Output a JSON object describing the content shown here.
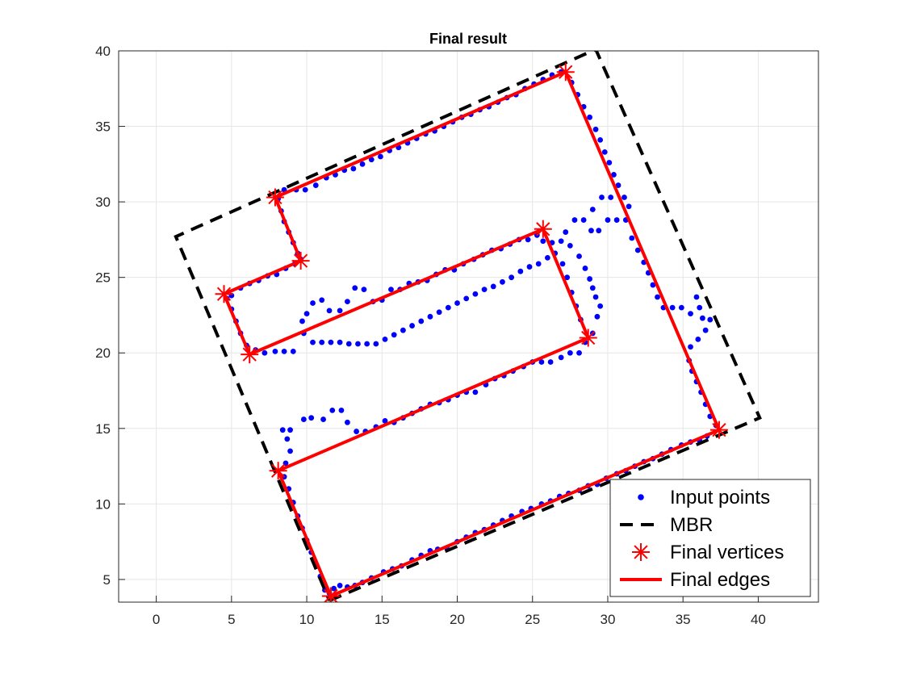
{
  "chart_data": {
    "type": "scatter",
    "title": "Final result",
    "xlabel": "",
    "ylabel": "",
    "xlim": [
      -2.5,
      44
    ],
    "ylim": [
      3.5,
      40
    ],
    "xticks": [
      0,
      5,
      10,
      15,
      20,
      25,
      30,
      35,
      40
    ],
    "yticks": [
      5,
      10,
      15,
      20,
      25,
      30,
      35,
      40
    ],
    "grid": true,
    "legend_position": "bottom-right",
    "colors": {
      "points": "#0000ff",
      "mbr": "#000000",
      "vertices": "#ff0000",
      "edges": "#ff0000",
      "grid": "#e6e6e6"
    },
    "series": [
      {
        "name": "Input points",
        "kind": "points",
        "points": [
          [
            11.5,
            4.1
          ],
          [
            11.8,
            4.4
          ],
          [
            12.2,
            4.6
          ],
          [
            12.7,
            4.5
          ],
          [
            13.2,
            4.6
          ],
          [
            13.7,
            4.8
          ],
          [
            14.3,
            5.1
          ],
          [
            15.1,
            5.5
          ],
          [
            15.7,
            5.7
          ],
          [
            16.3,
            5.9
          ],
          [
            17.0,
            6.3
          ],
          [
            17.6,
            6.6
          ],
          [
            18.2,
            6.9
          ],
          [
            18.7,
            7.0
          ],
          [
            19.3,
            7.1
          ],
          [
            20.0,
            7.5
          ],
          [
            20.6,
            7.8
          ],
          [
            21.2,
            8.1
          ],
          [
            21.8,
            8.3
          ],
          [
            22.4,
            8.6
          ],
          [
            23.0,
            8.9
          ],
          [
            23.6,
            9.2
          ],
          [
            24.3,
            9.5
          ],
          [
            24.9,
            9.7
          ],
          [
            25.6,
            10.0
          ],
          [
            26.2,
            10.2
          ],
          [
            26.8,
            10.5
          ],
          [
            27.4,
            10.7
          ],
          [
            28.1,
            10.9
          ],
          [
            28.7,
            11.2
          ],
          [
            29.3,
            11.3
          ],
          [
            29.9,
            11.7
          ],
          [
            30.6,
            12.0
          ],
          [
            31.2,
            12.2
          ],
          [
            31.8,
            12.5
          ],
          [
            32.4,
            12.8
          ],
          [
            33.0,
            13.0
          ],
          [
            33.6,
            13.3
          ],
          [
            34.2,
            13.6
          ],
          [
            34.9,
            13.9
          ],
          [
            35.5,
            14.1
          ],
          [
            36.1,
            14.2
          ],
          [
            36.6,
            14.5
          ],
          [
            11.2,
            4.3
          ],
          [
            10.9,
            5.2
          ],
          [
            10.6,
            6.0
          ],
          [
            10.3,
            6.8
          ],
          [
            10.0,
            7.6
          ],
          [
            9.7,
            8.4
          ],
          [
            9.4,
            9.2
          ],
          [
            9.1,
            10.1
          ],
          [
            8.8,
            11.0
          ],
          [
            8.5,
            11.8
          ],
          [
            8.6,
            12.7
          ],
          [
            8.9,
            13.5
          ],
          [
            8.7,
            14.3
          ],
          [
            8.4,
            14.9
          ],
          [
            8.9,
            14.9
          ],
          [
            9.8,
            15.6
          ],
          [
            10.3,
            15.7
          ],
          [
            11.1,
            15.6
          ],
          [
            11.7,
            16.2
          ],
          [
            12.3,
            16.2
          ],
          [
            12.7,
            15.4
          ],
          [
            13.3,
            14.8
          ],
          [
            13.9,
            14.8
          ],
          [
            14.6,
            15.1
          ],
          [
            15.2,
            15.5
          ],
          [
            15.8,
            15.4
          ],
          [
            16.4,
            15.7
          ],
          [
            17.0,
            16.0
          ],
          [
            17.6,
            16.3
          ],
          [
            18.2,
            16.6
          ],
          [
            18.8,
            16.7
          ],
          [
            19.4,
            16.9
          ],
          [
            20.0,
            17.2
          ],
          [
            20.6,
            17.4
          ],
          [
            21.2,
            17.4
          ],
          [
            21.9,
            17.9
          ],
          [
            22.5,
            18.3
          ],
          [
            23.1,
            18.5
          ],
          [
            23.7,
            18.8
          ],
          [
            24.4,
            19.1
          ],
          [
            25.0,
            19.4
          ],
          [
            25.6,
            19.4
          ],
          [
            26.2,
            19.4
          ],
          [
            26.9,
            19.7
          ],
          [
            27.5,
            20.0
          ],
          [
            28.1,
            20.0
          ],
          [
            28.5,
            20.7
          ],
          [
            29.0,
            21.3
          ],
          [
            29.3,
            22.4
          ],
          [
            29.5,
            23.1
          ],
          [
            29.2,
            23.7
          ],
          [
            29.0,
            24.3
          ],
          [
            28.8,
            24.9
          ],
          [
            28.5,
            25.6
          ],
          [
            28.1,
            26.4
          ],
          [
            27.5,
            27.1
          ],
          [
            26.9,
            27.4
          ],
          [
            26.3,
            27.3
          ],
          [
            25.7,
            27.4
          ],
          [
            25.3,
            27.8
          ],
          [
            24.7,
            27.5
          ],
          [
            24.1,
            27.5
          ],
          [
            23.5,
            27.2
          ],
          [
            22.9,
            26.9
          ],
          [
            22.3,
            26.8
          ],
          [
            21.7,
            26.5
          ],
          [
            21.1,
            26.2
          ],
          [
            20.4,
            25.9
          ],
          [
            19.8,
            25.5
          ],
          [
            19.2,
            25.5
          ],
          [
            18.6,
            25.2
          ],
          [
            18.0,
            24.8
          ],
          [
            17.4,
            24.7
          ],
          [
            16.8,
            24.6
          ],
          [
            16.2,
            24.2
          ],
          [
            15.6,
            24.2
          ],
          [
            15.0,
            23.5
          ],
          [
            14.4,
            23.4
          ],
          [
            13.8,
            24.2
          ],
          [
            13.2,
            24.3
          ],
          [
            12.7,
            23.4
          ],
          [
            12.2,
            22.8
          ],
          [
            11.5,
            22.8
          ],
          [
            11.0,
            23.5
          ],
          [
            10.4,
            23.3
          ],
          [
            10.0,
            22.6
          ],
          [
            9.7,
            22.1
          ],
          [
            9.8,
            21.3
          ],
          [
            10.4,
            20.7
          ],
          [
            11.0,
            20.7
          ],
          [
            11.6,
            20.7
          ],
          [
            12.2,
            20.7
          ],
          [
            12.8,
            20.6
          ],
          [
            13.4,
            20.6
          ],
          [
            14.0,
            20.6
          ],
          [
            14.6,
            20.6
          ],
          [
            15.2,
            20.9
          ],
          [
            15.8,
            21.2
          ],
          [
            16.4,
            21.5
          ],
          [
            17.0,
            21.8
          ],
          [
            17.6,
            22.1
          ],
          [
            18.2,
            22.4
          ],
          [
            18.8,
            22.7
          ],
          [
            19.4,
            23.0
          ],
          [
            20.0,
            23.3
          ],
          [
            20.6,
            23.6
          ],
          [
            21.2,
            23.9
          ],
          [
            21.8,
            24.2
          ],
          [
            22.4,
            24.4
          ],
          [
            23.0,
            24.7
          ],
          [
            23.6,
            25.0
          ],
          [
            24.2,
            25.4
          ],
          [
            24.8,
            25.7
          ],
          [
            25.4,
            25.9
          ],
          [
            26.0,
            26.3
          ],
          [
            26.5,
            26.6
          ],
          [
            27.0,
            25.9
          ],
          [
            27.3,
            25.0
          ],
          [
            27.6,
            24.0
          ],
          [
            27.9,
            23.1
          ],
          [
            28.2,
            22.2
          ],
          [
            7.9,
            20.1
          ],
          [
            8.5,
            20.1
          ],
          [
            9.1,
            20.1
          ],
          [
            6.6,
            20.2
          ],
          [
            7.2,
            20.0
          ],
          [
            6.0,
            20.5
          ],
          [
            5.6,
            21.3
          ],
          [
            5.3,
            22.1
          ],
          [
            5.0,
            22.9
          ],
          [
            4.7,
            23.6
          ],
          [
            5.0,
            23.8
          ],
          [
            5.6,
            24.3
          ],
          [
            6.2,
            24.6
          ],
          [
            6.8,
            24.8
          ],
          [
            7.4,
            25.1
          ],
          [
            8.0,
            25.2
          ],
          [
            8.6,
            25.6
          ],
          [
            9.2,
            25.9
          ],
          [
            9.6,
            26.2
          ],
          [
            9.4,
            26.6
          ],
          [
            9.1,
            27.3
          ],
          [
            8.8,
            28.0
          ],
          [
            8.5,
            28.7
          ],
          [
            8.3,
            29.4
          ],
          [
            8.1,
            30.2
          ],
          [
            8.5,
            30.8
          ],
          [
            9.3,
            30.8
          ],
          [
            9.9,
            30.8
          ],
          [
            10.6,
            31.1
          ],
          [
            11.3,
            31.6
          ],
          [
            11.9,
            31.8
          ],
          [
            12.5,
            32.1
          ],
          [
            13.1,
            32.2
          ],
          [
            13.7,
            32.5
          ],
          [
            14.3,
            32.8
          ],
          [
            14.9,
            33.0
          ],
          [
            15.5,
            33.4
          ],
          [
            16.1,
            33.6
          ],
          [
            16.7,
            33.9
          ],
          [
            17.3,
            34.2
          ],
          [
            17.9,
            34.5
          ],
          [
            18.5,
            34.7
          ],
          [
            19.1,
            35.0
          ],
          [
            19.7,
            35.3
          ],
          [
            20.3,
            35.6
          ],
          [
            20.9,
            35.8
          ],
          [
            21.5,
            36.1
          ],
          [
            22.1,
            36.3
          ],
          [
            22.7,
            36.6
          ],
          [
            23.3,
            36.9
          ],
          [
            23.9,
            37.1
          ],
          [
            24.5,
            37.5
          ],
          [
            25.1,
            37.8
          ],
          [
            25.7,
            38.1
          ],
          [
            26.3,
            38.4
          ],
          [
            26.9,
            38.6
          ],
          [
            27.6,
            37.9
          ],
          [
            28.0,
            37.1
          ],
          [
            28.4,
            36.3
          ],
          [
            28.8,
            35.6
          ],
          [
            29.2,
            34.8
          ],
          [
            29.5,
            34.1
          ],
          [
            29.8,
            33.3
          ],
          [
            30.1,
            32.6
          ],
          [
            30.4,
            31.8
          ],
          [
            30.7,
            31.1
          ],
          [
            30.2,
            30.3
          ],
          [
            29.6,
            30.3
          ],
          [
            29.0,
            29.5
          ],
          [
            28.4,
            28.8
          ],
          [
            27.8,
            28.8
          ],
          [
            27.2,
            28.0
          ],
          [
            28.9,
            28.1
          ],
          [
            29.4,
            28.1
          ],
          [
            30.0,
            28.8
          ],
          [
            30.6,
            28.8
          ],
          [
            31.2,
            28.8
          ],
          [
            31.6,
            27.6
          ],
          [
            32.0,
            26.8
          ],
          [
            32.4,
            26.0
          ],
          [
            32.7,
            25.3
          ],
          [
            33.0,
            24.5
          ],
          [
            33.3,
            23.7
          ],
          [
            33.7,
            23.0
          ],
          [
            34.3,
            23.0
          ],
          [
            34.9,
            23.0
          ],
          [
            35.5,
            22.6
          ],
          [
            35.9,
            23.7
          ],
          [
            36.1,
            23.0
          ],
          [
            36.3,
            22.3
          ],
          [
            36.8,
            22.2
          ],
          [
            36.5,
            21.5
          ],
          [
            36.0,
            20.9
          ],
          [
            35.5,
            20.4
          ],
          [
            35.4,
            19.5
          ],
          [
            35.6,
            18.8
          ],
          [
            35.9,
            18.1
          ],
          [
            36.2,
            17.4
          ],
          [
            36.5,
            16.6
          ],
          [
            36.8,
            15.8
          ],
          [
            37.2,
            15.2
          ],
          [
            31.1,
            30.3
          ],
          [
            31.4,
            29.7
          ]
        ]
      },
      {
        "name": "MBR",
        "kind": "dashed-line",
        "x": [
          11.5,
          40.1,
          29.2,
          1.3,
          11.5
        ],
        "y": [
          3.6,
          15.7,
          40.1,
          27.7,
          3.6
        ]
      },
      {
        "name": "Final vertices",
        "kind": "markers",
        "x": [
          11.6,
          37.4,
          27.2,
          7.9,
          9.6,
          4.5,
          6.2,
          25.7,
          28.7,
          8.1,
          11.6
        ],
        "y": [
          3.9,
          14.9,
          38.6,
          30.3,
          26.1,
          23.9,
          19.9,
          28.2,
          21.0,
          12.2,
          3.9
        ]
      },
      {
        "name": "Final edges",
        "kind": "solid-line",
        "x": [
          11.6,
          37.4,
          27.2,
          7.9,
          9.6,
          4.5,
          6.2,
          25.7,
          28.7,
          8.1,
          11.6
        ],
        "y": [
          3.9,
          14.9,
          38.6,
          30.3,
          26.1,
          23.9,
          19.9,
          28.2,
          21.0,
          12.2,
          3.9
        ]
      }
    ]
  }
}
